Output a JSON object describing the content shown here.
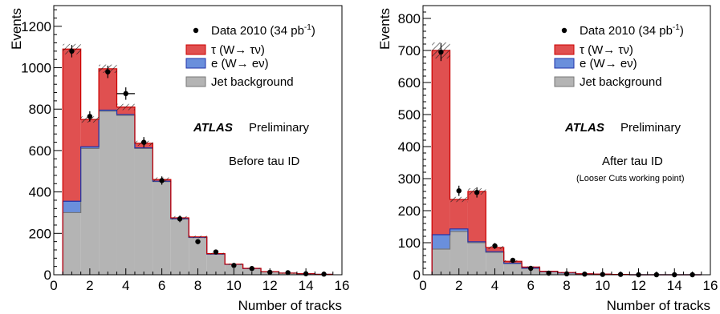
{
  "chart_data": [
    {
      "type": "bar",
      "xlabel": "Number of tracks",
      "ylabel": "Events",
      "xlim": [
        0,
        16
      ],
      "ylim": [
        0,
        1300
      ],
      "x_ticks": [
        "0",
        "2",
        "4",
        "6",
        "8",
        "10",
        "12",
        "14",
        "16"
      ],
      "y_ticks": [
        "0",
        "200",
        "400",
        "600",
        "800",
        "1000",
        "1200"
      ],
      "stacked": true,
      "bin_low_edges": [
        0.5,
        1.5,
        2.5,
        3.5,
        4.5,
        5.5,
        6.5,
        7.5,
        8.5,
        9.5,
        10.5,
        11.5,
        12.5,
        13.5,
        14.5
      ],
      "series": [
        {
          "name": "Jet background",
          "color": "#b4b4b4",
          "values": [
            300,
            610,
            790,
            770,
            610,
            450,
            270,
            180,
            100,
            50,
            30,
            15,
            8,
            5,
            2
          ]
        },
        {
          "name": "e (W→ eν)",
          "color": "#6a8fdc",
          "values": [
            55,
            8,
            5,
            4,
            3,
            2,
            1,
            1,
            0,
            0,
            0,
            0,
            0,
            0,
            0
          ]
        },
        {
          "name": "τ (W→ τν)",
          "color": "#e05050",
          "values": [
            735,
            132,
            200,
            36,
            22,
            8,
            4,
            2,
            2,
            1,
            1,
            0,
            0,
            0,
            0
          ]
        }
      ],
      "uncertainty": [
        25,
        15,
        20,
        15,
        12,
        10,
        8,
        6,
        4,
        3,
        2,
        2,
        1,
        1,
        1
      ],
      "data": {
        "name": "Data 2010 (34 pb⁻¹)",
        "y": [
          1080,
          765,
          980,
          875,
          640,
          455,
          270,
          160,
          110,
          45,
          30,
          12,
          10,
          5,
          3
        ],
        "yerr": [
          30,
          25,
          30,
          30,
          25,
          20,
          16,
          12,
          10,
          7,
          5,
          3,
          3,
          2,
          2
        ],
        "xerr": [
          0,
          0,
          0,
          0.5,
          0,
          0,
          0,
          0,
          0,
          0,
          0,
          0,
          0,
          0,
          0
        ]
      },
      "legend_entries": [
        "Data 2010 (34 pb",
        "τ (W→ τν)",
        "e (W→ eν)",
        "Jet background"
      ],
      "legend_sup": "-1",
      "legend_close": ")",
      "atlas_label": "ATLAS",
      "preliminary_label": "Preliminary",
      "note": "Before tau ID",
      "note_small": ""
    },
    {
      "type": "bar",
      "xlabel": "Number of tracks",
      "ylabel": "Events",
      "xlim": [
        0,
        16
      ],
      "ylim": [
        0,
        840
      ],
      "x_ticks": [
        "0",
        "2",
        "4",
        "6",
        "8",
        "10",
        "12",
        "14",
        "16"
      ],
      "y_ticks": [
        "0",
        "100",
        "200",
        "300",
        "400",
        "500",
        "600",
        "700",
        "800"
      ],
      "stacked": true,
      "bin_low_edges": [
        0.5,
        1.5,
        2.5,
        3.5,
        4.5,
        5.5,
        6.5,
        7.5,
        8.5,
        9.5,
        10.5,
        11.5,
        12.5,
        13.5,
        14.5
      ],
      "series": [
        {
          "name": "Jet background",
          "color": "#b4b4b4",
          "values": [
            80,
            135,
            100,
            70,
            35,
            20,
            10,
            6,
            3,
            2,
            1,
            0,
            0,
            0,
            0
          ]
        },
        {
          "name": "e (W→ eν)",
          "color": "#6a8fdc",
          "values": [
            45,
            8,
            3,
            2,
            1,
            1,
            0,
            0,
            0,
            0,
            0,
            0,
            0,
            0,
            0
          ]
        },
        {
          "name": "τ (W→ τν)",
          "color": "#e05050",
          "values": [
            575,
            92,
            157,
            13,
            6,
            3,
            1,
            1,
            0,
            0,
            0,
            0,
            0,
            0,
            0
          ]
        }
      ],
      "uncertainty": [
        25,
        8,
        10,
        5,
        3,
        2,
        1,
        1,
        0,
        0,
        0,
        0,
        0,
        0,
        0
      ],
      "data": {
        "name": "Data 2010 (34 pb⁻¹)",
        "y": [
          695,
          262,
          257,
          90,
          45,
          20,
          5,
          3,
          2,
          1,
          1,
          0,
          0,
          0,
          0
        ],
        "yerr": [
          28,
          16,
          16,
          9,
          6,
          4,
          2,
          2,
          1,
          1,
          1,
          0,
          0,
          0,
          0
        ],
        "xerr": [
          0,
          0,
          0,
          0,
          0,
          0,
          0,
          0,
          0,
          0,
          0,
          0,
          0,
          0,
          0
        ]
      },
      "legend_entries": [
        "Data 2010 (34 pb",
        "τ (W→ τν)",
        "e (W→ eν)",
        "Jet background"
      ],
      "legend_sup": "-1",
      "legend_close": ")",
      "atlas_label": "ATLAS",
      "preliminary_label": "Preliminary",
      "note": "After tau ID",
      "note_small": "(Looser Cuts working point)"
    }
  ]
}
